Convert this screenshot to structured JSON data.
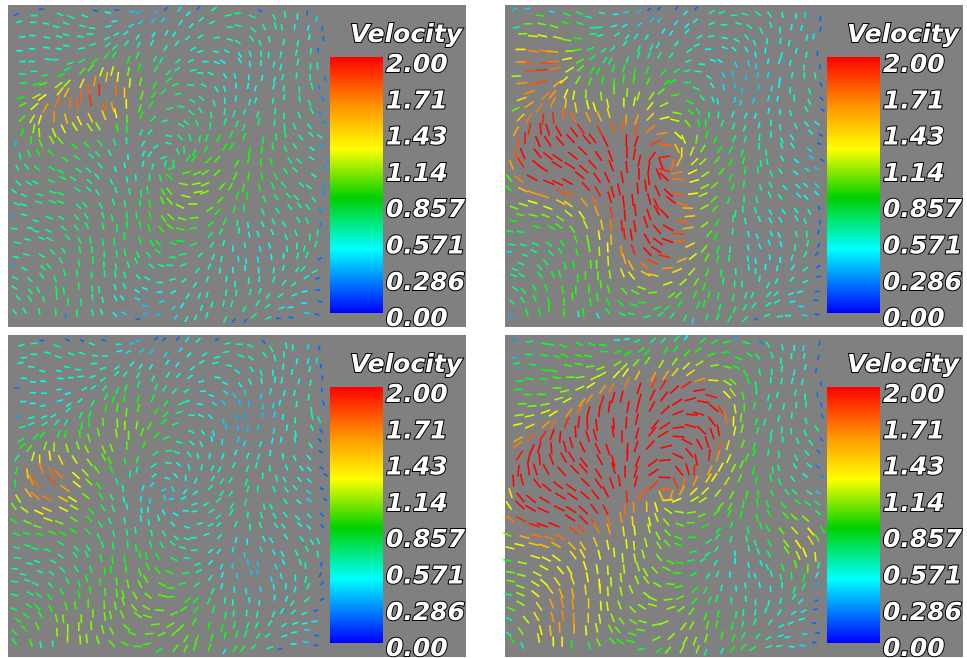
{
  "panels": [
    {
      "legend": {
        "title": "Velocity",
        "ticks": [
          "2.00",
          "1.71",
          "1.43",
          "1.14",
          "0.857",
          "0.571",
          "0.286",
          "0.00"
        ]
      }
    },
    {
      "legend": {
        "title": "Velocity",
        "ticks": [
          "2.00",
          "1.71",
          "1.43",
          "1.14",
          "0.857",
          "0.571",
          "0.286",
          "0.00"
        ]
      }
    },
    {
      "legend": {
        "title": "Velocity",
        "ticks": [
          "2.00",
          "1.71",
          "1.43",
          "1.14",
          "0.857",
          "0.571",
          "0.286",
          "0.00"
        ]
      }
    },
    {
      "legend": {
        "title": "Velocity",
        "ticks": [
          "2.00",
          "1.71",
          "1.43",
          "1.14",
          "0.857",
          "0.571",
          "0.286",
          "0.00"
        ]
      }
    }
  ]
}
